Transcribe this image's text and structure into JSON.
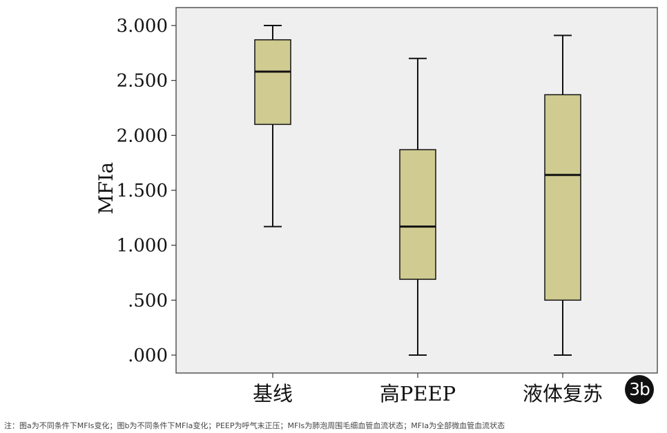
{
  "chart_data": {
    "type": "box",
    "ylabel": "MFIa",
    "ylim": [
      0,
      3.0
    ],
    "ytick_values": [
      0,
      0.5,
      1.0,
      1.5,
      2.0,
      2.5,
      3.0
    ],
    "ytick_labels": [
      ".000",
      ".500",
      "1.000",
      "1.500",
      "2.000",
      "2.500",
      "3.000"
    ],
    "categories": [
      "基线",
      "高PEEP",
      "液体复苏"
    ],
    "boxes": [
      {
        "category": "基线",
        "min": 1.17,
        "q1": 2.1,
        "median": 2.58,
        "q3": 2.87,
        "max": 3.0
      },
      {
        "category": "高PEEP",
        "min": 0.0,
        "q1": 0.69,
        "median": 1.17,
        "q3": 1.87,
        "max": 2.7
      },
      {
        "category": "液体复苏",
        "min": 0.0,
        "q1": 0.5,
        "median": 1.64,
        "q3": 2.37,
        "max": 2.91
      }
    ],
    "grid": false,
    "colors": {
      "plot_bg": "#efefef",
      "box_fill": "#cfcb91",
      "line": "#111111"
    }
  },
  "badge": "3b",
  "note": "注：图a为不同条件下MFIs变化；图b为不同条件下MFIa变化；PEEP为呼气末正压；MFIs为肺泡周围毛细血管血流状态；MFIa为全部微血管血流状态"
}
